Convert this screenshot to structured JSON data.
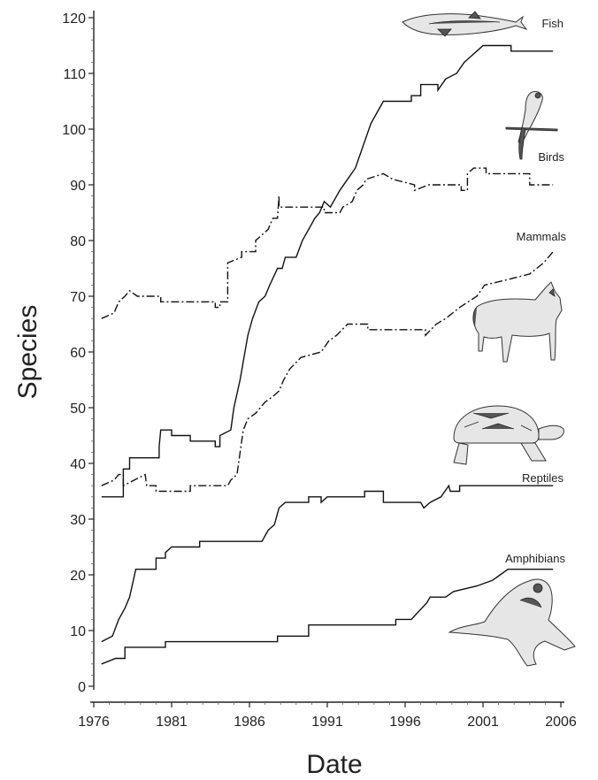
{
  "chart_data": {
    "type": "line",
    "title": "",
    "xlabel": "Date",
    "ylabel": "Species",
    "xlim": [
      1976,
      2006
    ],
    "ylim": [
      0,
      120
    ],
    "xticks": [
      1976,
      1981,
      1986,
      1991,
      1996,
      2001,
      2006
    ],
    "yticks": [
      0,
      10,
      20,
      30,
      40,
      50,
      60,
      70,
      80,
      90,
      100,
      110,
      120
    ],
    "grid": false,
    "legend": "inline labels",
    "series": [
      {
        "name": "Fish",
        "style": "solid",
        "points": [
          [
            1976.5,
            34
          ],
          [
            1977.9,
            34
          ],
          [
            1977.9,
            39
          ],
          [
            1978.3,
            39
          ],
          [
            1978.3,
            41
          ],
          [
            1980.2,
            41
          ],
          [
            1980.2,
            43
          ],
          [
            1980.3,
            46
          ],
          [
            1981.0,
            46
          ],
          [
            1981.0,
            45
          ],
          [
            1982.2,
            45
          ],
          [
            1982.2,
            44
          ],
          [
            1983.8,
            44
          ],
          [
            1983.8,
            43
          ],
          [
            1984.1,
            43
          ],
          [
            1984.1,
            45
          ],
          [
            1984.8,
            46
          ],
          [
            1985.0,
            50
          ],
          [
            1985.4,
            55
          ],
          [
            1985.9,
            63
          ],
          [
            1986.2,
            66
          ],
          [
            1986.6,
            69
          ],
          [
            1987.0,
            70
          ],
          [
            1987.3,
            72
          ],
          [
            1987.8,
            75
          ],
          [
            1988.1,
            75
          ],
          [
            1988.3,
            77
          ],
          [
            1989.0,
            77
          ],
          [
            1989.4,
            80
          ],
          [
            1989.8,
            82
          ],
          [
            1990.2,
            84
          ],
          [
            1990.5,
            85
          ],
          [
            1990.8,
            87
          ],
          [
            1991.2,
            86
          ],
          [
            1991.8,
            89
          ],
          [
            1992.3,
            91
          ],
          [
            1992.8,
            93
          ],
          [
            1993.3,
            97
          ],
          [
            1993.8,
            101
          ],
          [
            1994.2,
            103
          ],
          [
            1994.6,
            105
          ],
          [
            1996.4,
            105
          ],
          [
            1996.4,
            106
          ],
          [
            1997.0,
            106
          ],
          [
            1997.0,
            108
          ],
          [
            1998.1,
            108
          ],
          [
            1998.1,
            107
          ],
          [
            1998.6,
            109
          ],
          [
            1999.3,
            110
          ],
          [
            1999.8,
            112
          ],
          [
            2000.2,
            113
          ],
          [
            2000.6,
            114
          ],
          [
            2001.0,
            115
          ],
          [
            2002.8,
            115
          ],
          [
            2002.8,
            114
          ],
          [
            2005.5,
            114
          ]
        ]
      },
      {
        "name": "Birds",
        "style": "dash-dot",
        "points": [
          [
            1976.5,
            66
          ],
          [
            1977.3,
            67
          ],
          [
            1977.6,
            69
          ],
          [
            1978.0,
            70
          ],
          [
            1978.3,
            71
          ],
          [
            1978.8,
            70
          ],
          [
            1980.3,
            70
          ],
          [
            1980.3,
            69
          ],
          [
            1983.8,
            69
          ],
          [
            1983.8,
            68
          ],
          [
            1984.1,
            68
          ],
          [
            1984.1,
            69
          ],
          [
            1984.6,
            69
          ],
          [
            1984.6,
            76
          ],
          [
            1985.5,
            77
          ],
          [
            1985.5,
            78
          ],
          [
            1986.4,
            78
          ],
          [
            1986.4,
            80
          ],
          [
            1986.8,
            81
          ],
          [
            1987.2,
            82
          ],
          [
            1987.5,
            84
          ],
          [
            1987.8,
            84
          ],
          [
            1987.9,
            88
          ],
          [
            1987.9,
            86
          ],
          [
            1990.8,
            86
          ],
          [
            1990.8,
            85
          ],
          [
            1991.8,
            85
          ],
          [
            1992.0,
            86
          ],
          [
            1992.6,
            87
          ],
          [
            1992.9,
            89
          ],
          [
            1993.3,
            90
          ],
          [
            1993.5,
            91
          ],
          [
            1994.6,
            92
          ],
          [
            1995.2,
            91
          ],
          [
            1996.6,
            90
          ],
          [
            1996.6,
            89
          ],
          [
            1997.5,
            90
          ],
          [
            1999.6,
            90
          ],
          [
            1999.6,
            89
          ],
          [
            2000.0,
            89
          ],
          [
            2000.0,
            92
          ],
          [
            2000.4,
            93
          ],
          [
            2001.2,
            93
          ],
          [
            2001.2,
            92
          ],
          [
            2004.0,
            92
          ],
          [
            2004.0,
            90
          ],
          [
            2005.5,
            90
          ]
        ]
      },
      {
        "name": "Mammals",
        "style": "dash-dot",
        "points": [
          [
            1976.5,
            36
          ],
          [
            1977.3,
            37
          ],
          [
            1977.6,
            38
          ],
          [
            1977.9,
            38
          ],
          [
            1977.9,
            36
          ],
          [
            1978.6,
            37
          ],
          [
            1979.3,
            38
          ],
          [
            1979.4,
            36
          ],
          [
            1980.0,
            36
          ],
          [
            1980.0,
            35
          ],
          [
            1982.2,
            35
          ],
          [
            1982.2,
            36
          ],
          [
            1984.6,
            36
          ],
          [
            1984.8,
            37
          ],
          [
            1985.2,
            38
          ],
          [
            1985.6,
            46
          ],
          [
            1985.9,
            48
          ],
          [
            1986.4,
            49
          ],
          [
            1987.0,
            51
          ],
          [
            1987.5,
            52
          ],
          [
            1987.9,
            53
          ],
          [
            1988.2,
            55
          ],
          [
            1988.6,
            57
          ],
          [
            1989.3,
            59
          ],
          [
            1990.6,
            60
          ],
          [
            1991.1,
            62
          ],
          [
            1991.6,
            63
          ],
          [
            1992.3,
            65
          ],
          [
            1993.6,
            65
          ],
          [
            1993.6,
            64
          ],
          [
            1997.3,
            64
          ],
          [
            1997.3,
            63
          ],
          [
            1998.0,
            65
          ],
          [
            1998.6,
            66
          ],
          [
            1999.5,
            68
          ],
          [
            2000.6,
            70
          ],
          [
            2001.1,
            72
          ],
          [
            2002.6,
            73
          ],
          [
            2004.0,
            74
          ],
          [
            2004.9,
            76
          ],
          [
            2005.2,
            77
          ],
          [
            2005.5,
            78
          ]
        ]
      },
      {
        "name": "Reptiles",
        "style": "solid",
        "points": [
          [
            1976.5,
            8
          ],
          [
            1977.2,
            9
          ],
          [
            1977.6,
            12
          ],
          [
            1978.0,
            14
          ],
          [
            1978.3,
            16
          ],
          [
            1978.7,
            21
          ],
          [
            1980.0,
            21
          ],
          [
            1980.0,
            23
          ],
          [
            1980.6,
            23
          ],
          [
            1980.6,
            24
          ],
          [
            1981.0,
            25
          ],
          [
            1982.8,
            25
          ],
          [
            1982.8,
            26
          ],
          [
            1986.8,
            26
          ],
          [
            1987.2,
            28
          ],
          [
            1987.6,
            29
          ],
          [
            1987.9,
            32
          ],
          [
            1988.3,
            33
          ],
          [
            1989.8,
            33
          ],
          [
            1989.8,
            34
          ],
          [
            1990.6,
            34
          ],
          [
            1990.6,
            33
          ],
          [
            1991.0,
            34
          ],
          [
            1993.4,
            34
          ],
          [
            1993.4,
            35
          ],
          [
            1994.6,
            35
          ],
          [
            1994.6,
            33
          ],
          [
            1997.0,
            33
          ],
          [
            1997.2,
            32
          ],
          [
            1997.6,
            33
          ],
          [
            1998.3,
            34
          ],
          [
            1998.8,
            36
          ],
          [
            1998.9,
            35
          ],
          [
            1999.5,
            35
          ],
          [
            1999.5,
            36
          ],
          [
            2005.5,
            36
          ]
        ]
      },
      {
        "name": "Amphibians",
        "style": "solid",
        "points": [
          [
            1976.5,
            4
          ],
          [
            1977.4,
            5
          ],
          [
            1978.0,
            5
          ],
          [
            1978.0,
            7
          ],
          [
            1980.6,
            7
          ],
          [
            1980.6,
            8
          ],
          [
            1987.8,
            8
          ],
          [
            1987.8,
            9
          ],
          [
            1989.8,
            9
          ],
          [
            1989.8,
            11
          ],
          [
            1995.4,
            11
          ],
          [
            1995.4,
            12
          ],
          [
            1996.4,
            12
          ],
          [
            1997.4,
            15
          ],
          [
            1997.6,
            16
          ],
          [
            1998.6,
            16
          ],
          [
            1999.1,
            17
          ],
          [
            2000.6,
            18
          ],
          [
            2001.6,
            19
          ],
          [
            2002.1,
            20
          ],
          [
            2002.6,
            21
          ],
          [
            2005.5,
            21
          ]
        ]
      }
    ],
    "series_labels": [
      "Fish",
      "Birds",
      "Mammals",
      "Reptiles",
      "Amphibians"
    ]
  },
  "illustrations": [
    "fish-illustration",
    "bird-illustration",
    "wolf-illustration",
    "tortoise-illustration",
    "frog-illustration"
  ]
}
